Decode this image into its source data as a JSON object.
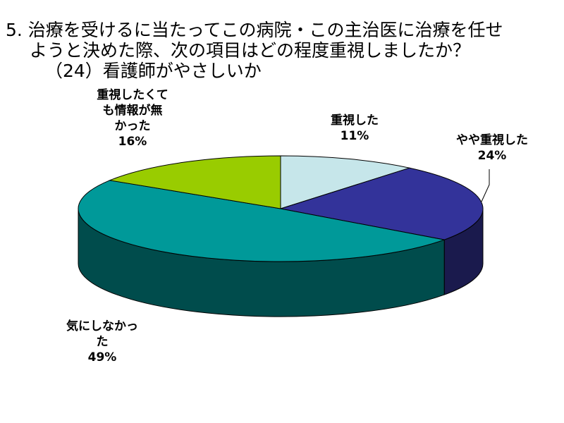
{
  "title": {
    "line1": "5. 治療を受けるに当たってこの病院・この主治医に治療を任せ",
    "line2": "ようと決めた際、次の項目はどの程度重視しましたか？",
    "line3": "（24）看護師がやさしいか"
  },
  "chart_data": {
    "type": "pie",
    "three_d": true,
    "categories": [
      "重視した",
      "やや重視した",
      "気にしなかった",
      "重視したくても情報が無かった"
    ],
    "values": [
      11,
      24,
      49,
      16
    ],
    "unit": "%",
    "colors": [
      "#c6e6ea",
      "#33339a",
      "#009999",
      "#99cc00"
    ],
    "side_colors": [
      "#7fa4a8",
      "#1a1a4d",
      "#004c4c",
      "#4c6600"
    ],
    "labels": [
      {
        "lines": [
          "重視した"
        ],
        "pct": "11%"
      },
      {
        "lines": [
          "やや重視した"
        ],
        "pct": "24%"
      },
      {
        "lines": [
          "気にしなかっ",
          "た"
        ],
        "pct": "49%"
      },
      {
        "lines": [
          "重視したくて",
          "も情報が無",
          "かった"
        ],
        "pct": "16%"
      }
    ]
  }
}
